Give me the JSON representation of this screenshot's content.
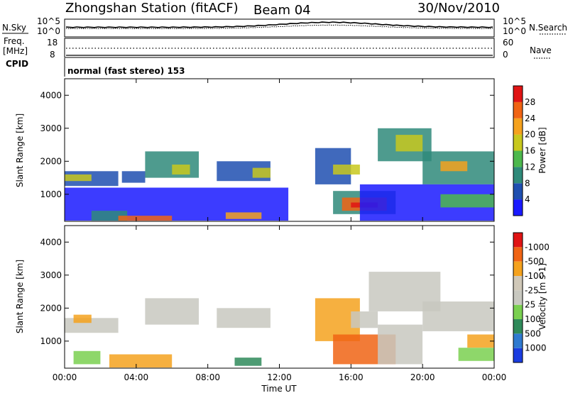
{
  "header": {
    "station": "Zhongshan Station (fitACF)",
    "beam": "Beam 04",
    "date": "30/Nov/2010"
  },
  "mode_label": "normal (fast stereo) 153",
  "noise_panel": {
    "left_label": "N.Sky",
    "right_label": "N.Search",
    "left_ticks": [
      "10^5",
      "10^0"
    ],
    "right_ticks": [
      "10^5",
      "10^0"
    ]
  },
  "freq_panel": {
    "left_label_1": "Freq.",
    "left_label_2": "[MHz]",
    "left_ticks": [
      "18",
      "8"
    ],
    "right_label": "Nave",
    "right_ticks": [
      "60",
      "0"
    ],
    "cpid_label": "CPID"
  },
  "chart_data": [
    {
      "type": "heatmap",
      "name": "power",
      "ylabel": "Slant Range [km]",
      "xlabel": "",
      "ylim": [
        180,
        4500
      ],
      "xlim": [
        0,
        24
      ],
      "yticks": [
        "1000",
        "2000",
        "3000",
        "4000"
      ],
      "colorbar": {
        "label": "Power [dB]",
        "levels": [
          "4",
          "8",
          "12",
          "16",
          "20",
          "24",
          "28"
        ],
        "colors": [
          "#1a1aff",
          "#1f4fb0",
          "#2f8a7a",
          "#4db84d",
          "#c8c81e",
          "#f5a21e",
          "#f06414",
          "#e01414"
        ]
      },
      "regions": [
        {
          "t0": 0.0,
          "t1": 3.0,
          "r0": 1250,
          "r1": 1700,
          "color": "#1f4fb0"
        },
        {
          "t0": 0.0,
          "t1": 1.5,
          "r0": 1400,
          "r1": 1600,
          "color": "#c8c81e"
        },
        {
          "t0": 3.2,
          "t1": 4.5,
          "r0": 1350,
          "r1": 1700,
          "color": "#1f4fb0"
        },
        {
          "t0": 4.5,
          "t1": 7.5,
          "r0": 1500,
          "r1": 2300,
          "color": "#2f8a7a"
        },
        {
          "t0": 6.0,
          "t1": 7.0,
          "r0": 1600,
          "r1": 1900,
          "color": "#c8c81e"
        },
        {
          "t0": 8.5,
          "t1": 11.5,
          "r0": 1400,
          "r1": 2000,
          "color": "#1f4fb0"
        },
        {
          "t0": 10.5,
          "t1": 11.5,
          "r0": 1500,
          "r1": 1800,
          "color": "#c8c81e"
        },
        {
          "t0": 0.0,
          "t1": 12.5,
          "r0": 200,
          "r1": 1200,
          "color": "#1a1aff"
        },
        {
          "t0": 1.5,
          "t1": 3.5,
          "r0": 200,
          "r1": 500,
          "color": "#2f8a7a"
        },
        {
          "t0": 3.0,
          "t1": 6.0,
          "r0": 200,
          "r1": 350,
          "color": "#f06414"
        },
        {
          "t0": 9.0,
          "t1": 11.0,
          "r0": 250,
          "r1": 450,
          "color": "#f5a21e"
        },
        {
          "t0": 14.0,
          "t1": 16.0,
          "r0": 1300,
          "r1": 2400,
          "color": "#1f4fb0"
        },
        {
          "t0": 15.0,
          "t1": 16.5,
          "r0": 1600,
          "r1": 1900,
          "color": "#c8c81e"
        },
        {
          "t0": 15.0,
          "t1": 18.5,
          "r0": 400,
          "r1": 1100,
          "color": "#2f8a7a"
        },
        {
          "t0": 15.5,
          "t1": 18.0,
          "r0": 500,
          "r1": 900,
          "color": "#f06414"
        },
        {
          "t0": 16.0,
          "t1": 17.5,
          "r0": 600,
          "r1": 750,
          "color": "#e01414"
        },
        {
          "t0": 17.5,
          "t1": 20.5,
          "r0": 2000,
          "r1": 3000,
          "color": "#2f8a7a"
        },
        {
          "t0": 18.5,
          "t1": 20.0,
          "r0": 2300,
          "r1": 2800,
          "color": "#c8c81e"
        },
        {
          "t0": 20.0,
          "t1": 24.0,
          "r0": 1300,
          "r1": 2300,
          "color": "#2f8a7a"
        },
        {
          "t0": 21.0,
          "t1": 22.5,
          "r0": 1700,
          "r1": 2000,
          "color": "#f5a21e"
        },
        {
          "t0": 16.5,
          "t1": 24.0,
          "r0": 200,
          "r1": 1300,
          "color": "#1a1aff"
        },
        {
          "t0": 21.0,
          "t1": 24.0,
          "r0": 600,
          "r1": 1000,
          "color": "#4db84d"
        }
      ]
    },
    {
      "type": "heatmap",
      "name": "velocity",
      "ylabel": "Slant Range [km]",
      "xlabel": "Time UT",
      "ylim": [
        180,
        4500
      ],
      "xlim": [
        0,
        24
      ],
      "yticks": [
        "1000",
        "2000",
        "3000",
        "4000"
      ],
      "xticks": [
        "00:00",
        "04:00",
        "08:00",
        "12:00",
        "16:00",
        "20:00",
        "00:00"
      ],
      "colorbar": {
        "label": "Velocity [m s-1]",
        "levels": [
          "1000",
          "500",
          "100",
          "25",
          "-25",
          "-100",
          "-500",
          "-1000"
        ],
        "colors": [
          "#1a3ce0",
          "#2f7ad0",
          "#2f8a5a",
          "#7ad050",
          "#c8c8c0",
          "#d0c8b8",
          "#f5a21e",
          "#f06414",
          "#e01414"
        ]
      },
      "regions": [
        {
          "t0": 0.0,
          "t1": 3.0,
          "r0": 1250,
          "r1": 1700,
          "color": "#c8c8c0"
        },
        {
          "t0": 4.5,
          "t1": 7.5,
          "r0": 1500,
          "r1": 2300,
          "color": "#c8c8c0"
        },
        {
          "t0": 8.5,
          "t1": 11.5,
          "r0": 1400,
          "r1": 2000,
          "color": "#c8c8c0"
        },
        {
          "t0": 0.5,
          "t1": 1.5,
          "r0": 1550,
          "r1": 1800,
          "color": "#f5a21e"
        },
        {
          "t0": 0.5,
          "t1": 2.0,
          "r0": 300,
          "r1": 700,
          "color": "#7ad050"
        },
        {
          "t0": 2.5,
          "t1": 6.0,
          "r0": 200,
          "r1": 600,
          "color": "#f5a21e"
        },
        {
          "t0": 9.5,
          "t1": 11.0,
          "r0": 250,
          "r1": 500,
          "color": "#2f8a5a"
        },
        {
          "t0": 14.0,
          "t1": 16.5,
          "r0": 1000,
          "r1": 2300,
          "color": "#f5a21e"
        },
        {
          "t0": 15.0,
          "t1": 18.5,
          "r0": 300,
          "r1": 1200,
          "color": "#f06414"
        },
        {
          "t0": 16.0,
          "t1": 17.5,
          "r0": 1400,
          "r1": 1900,
          "color": "#c8c8c0"
        },
        {
          "t0": 17.0,
          "t1": 21.0,
          "r0": 1900,
          "r1": 3100,
          "color": "#c8c8c0"
        },
        {
          "t0": 20.0,
          "t1": 24.0,
          "r0": 1300,
          "r1": 2200,
          "color": "#c8c8c0"
        },
        {
          "t0": 17.5,
          "t1": 20.0,
          "r0": 300,
          "r1": 1500,
          "color": "#c8c8c0"
        },
        {
          "t0": 22.0,
          "t1": 24.0,
          "r0": 400,
          "r1": 800,
          "color": "#7ad050"
        },
        {
          "t0": 22.5,
          "t1": 24.0,
          "r0": 800,
          "r1": 1200,
          "color": "#f5a21e"
        }
      ]
    }
  ]
}
